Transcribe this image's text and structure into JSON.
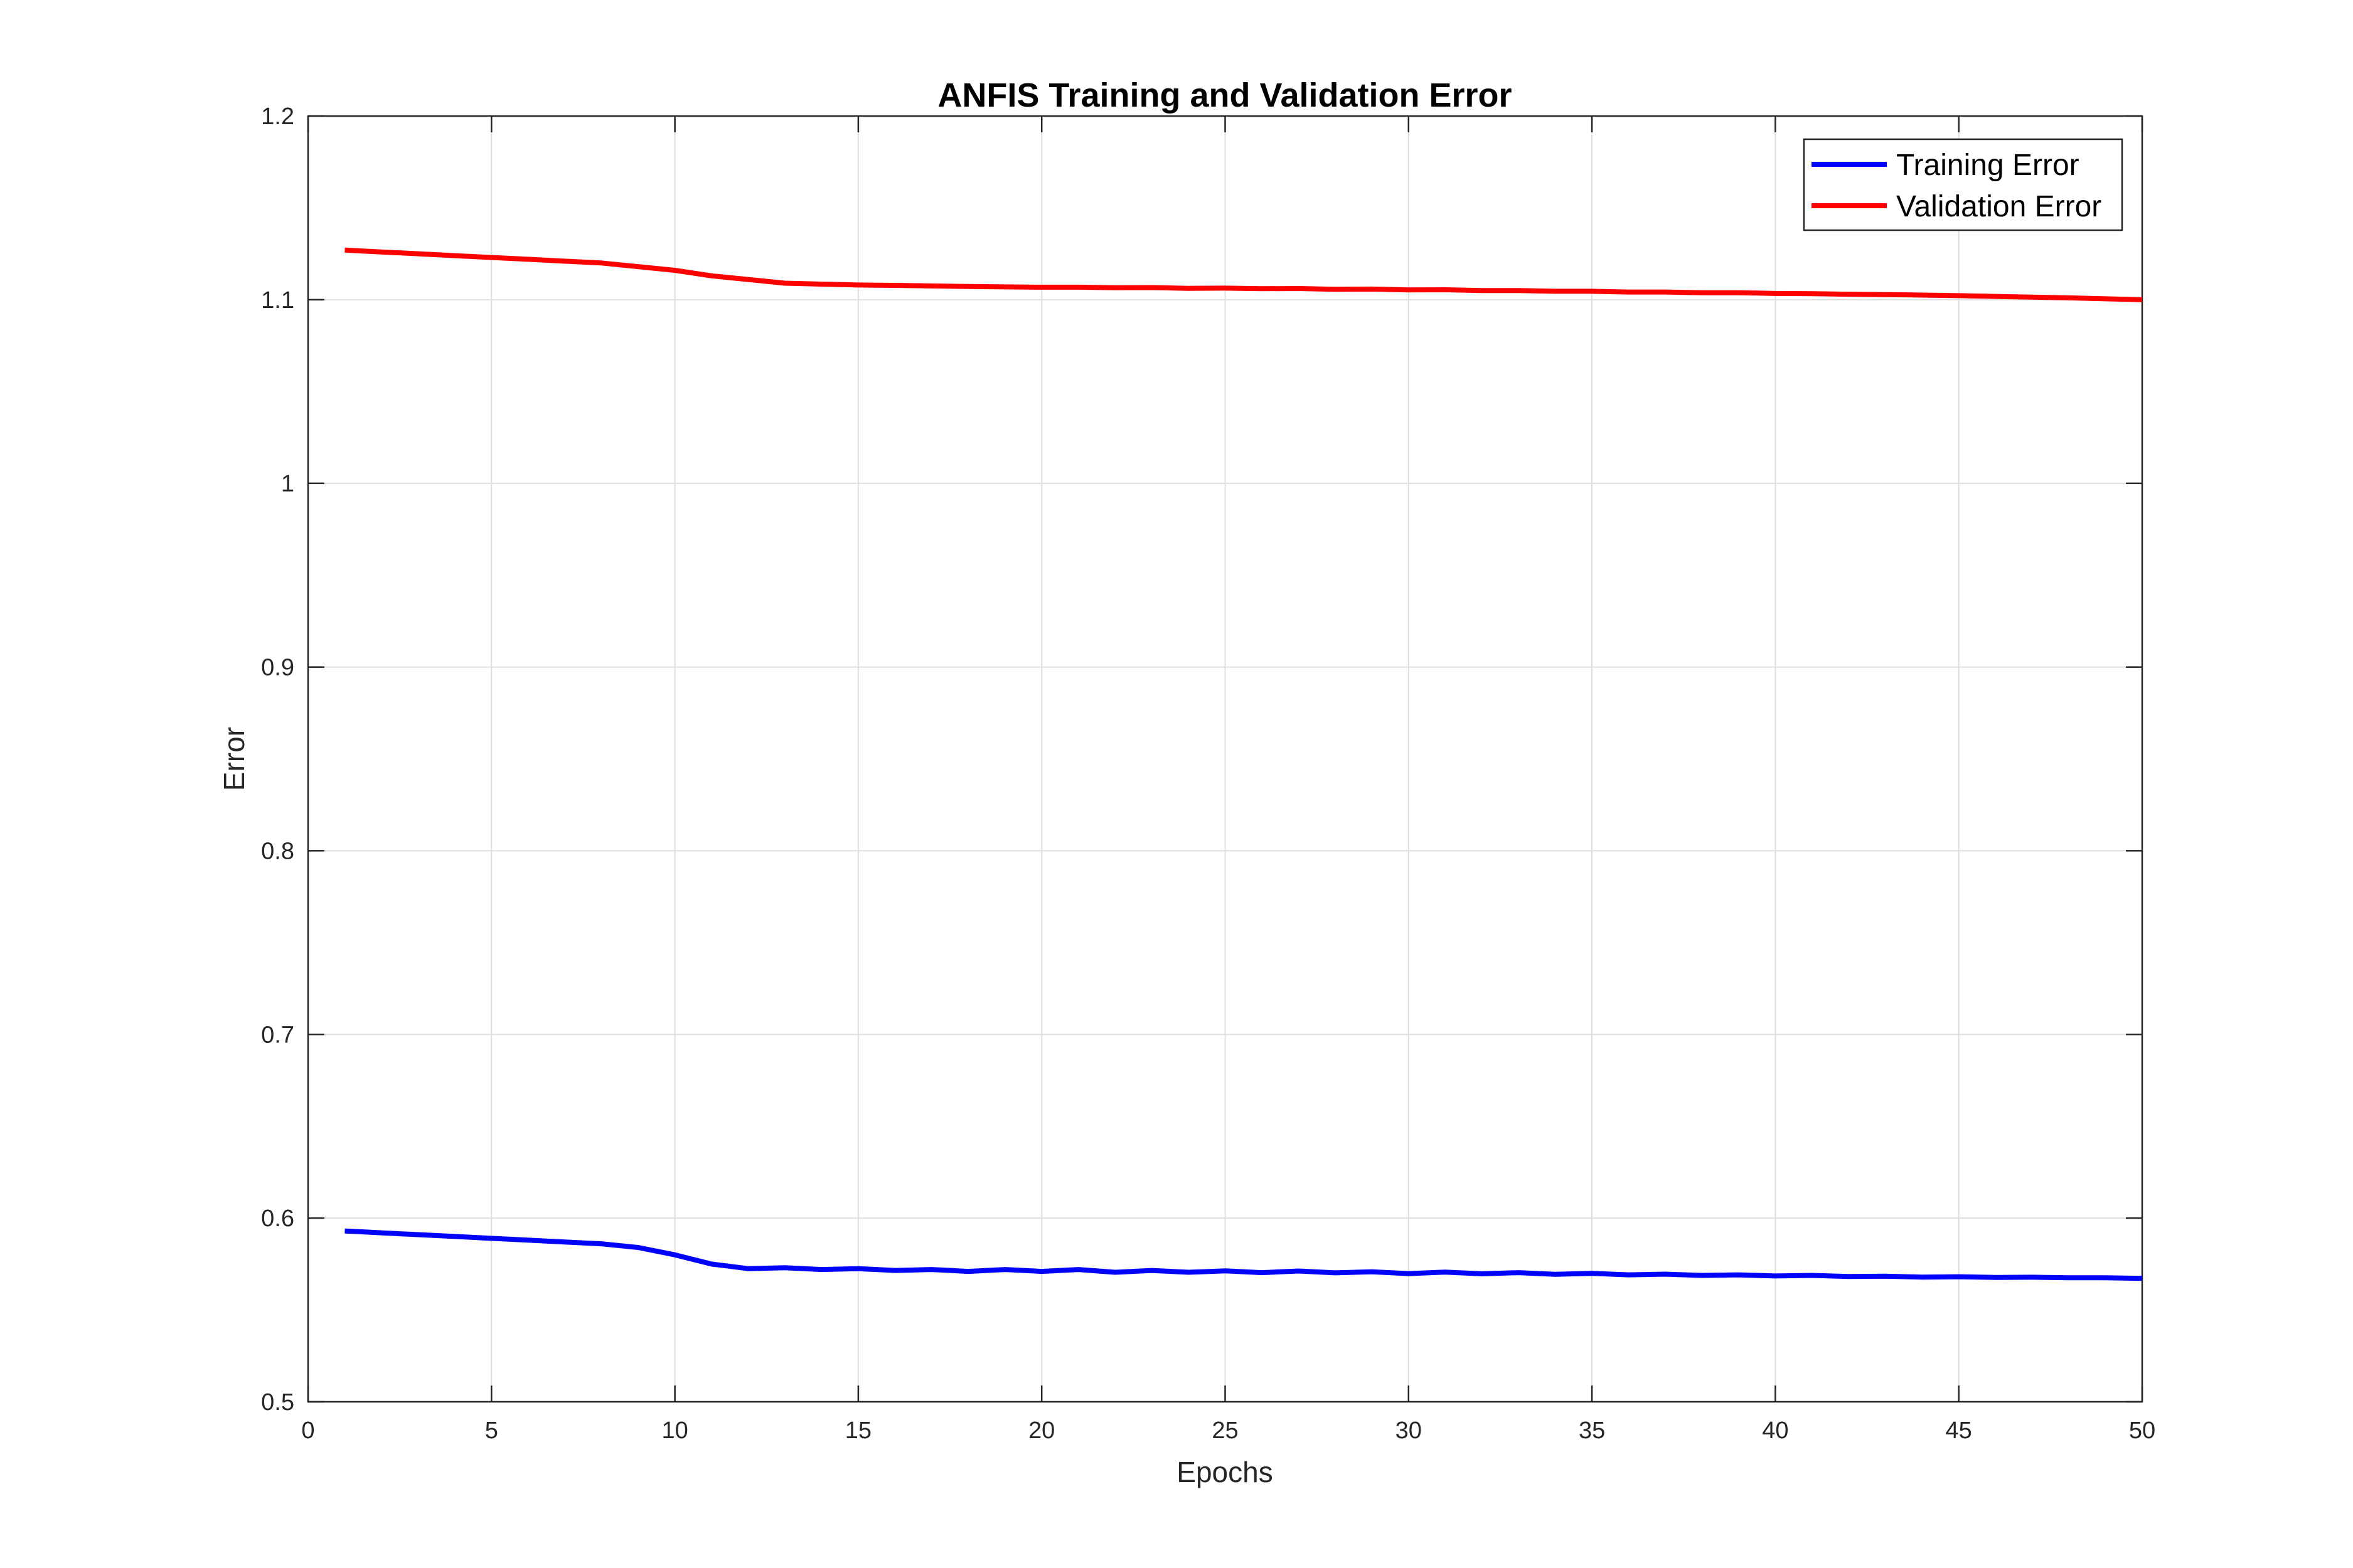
{
  "chart_data": {
    "type": "line",
    "title": "ANFIS Training and Validation Error",
    "xlabel": "Epochs",
    "ylabel": "Error",
    "xlim": [
      0,
      50
    ],
    "ylim": [
      0.5,
      1.2
    ],
    "xticks": [
      0,
      5,
      10,
      15,
      20,
      25,
      30,
      35,
      40,
      45,
      50
    ],
    "xtick_labels": [
      "0",
      "5",
      "10",
      "15",
      "20",
      "25",
      "30",
      "35",
      "40",
      "45",
      "50"
    ],
    "yticks": [
      0.5,
      0.6,
      0.7,
      0.8,
      0.9,
      1.0,
      1.1,
      1.2
    ],
    "ytick_labels": [
      "0.5",
      "0.6",
      "0.7",
      "0.8",
      "0.9",
      "1",
      "1.1",
      "1.2"
    ],
    "grid": true,
    "legend_position": "top-right",
    "x": [
      1,
      2,
      3,
      4,
      5,
      6,
      7,
      8,
      9,
      10,
      11,
      12,
      13,
      14,
      15,
      16,
      17,
      18,
      19,
      20,
      21,
      22,
      23,
      24,
      25,
      26,
      27,
      28,
      29,
      30,
      31,
      32,
      33,
      34,
      35,
      36,
      37,
      38,
      39,
      40,
      41,
      42,
      43,
      44,
      45,
      46,
      47,
      48,
      49,
      50
    ],
    "series": [
      {
        "name": "Training Error",
        "color": "#0000ff",
        "values": [
          0.593,
          0.592,
          0.591,
          0.59,
          0.589,
          0.588,
          0.587,
          0.586,
          0.584,
          0.58,
          0.575,
          0.5725,
          0.573,
          0.572,
          0.5725,
          0.5715,
          0.572,
          0.571,
          0.572,
          0.571,
          0.572,
          0.5705,
          0.5715,
          0.5705,
          0.5713,
          0.5703,
          0.5712,
          0.5702,
          0.5708,
          0.5698,
          0.5706,
          0.5697,
          0.5703,
          0.5694,
          0.5699,
          0.5691,
          0.5695,
          0.5688,
          0.5691,
          0.5685,
          0.5688,
          0.5682,
          0.5684,
          0.5679,
          0.5681,
          0.5677,
          0.5678,
          0.5675,
          0.5675,
          0.5672
        ]
      },
      {
        "name": "Validation Error",
        "color": "#ff0000",
        "values": [
          1.127,
          1.126,
          1.125,
          1.124,
          1.123,
          1.122,
          1.121,
          1.12,
          1.118,
          1.116,
          1.113,
          1.111,
          1.109,
          1.1085,
          1.108,
          1.1078,
          1.1075,
          1.1072,
          1.107,
          1.1068,
          1.1068,
          1.1065,
          1.1066,
          1.1062,
          1.1063,
          1.106,
          1.1061,
          1.1057,
          1.1058,
          1.1053,
          1.1054,
          1.105,
          1.105,
          1.1046,
          1.1046,
          1.1042,
          1.1042,
          1.1038,
          1.1038,
          1.1034,
          1.1033,
          1.103,
          1.1028,
          1.1025,
          1.1022,
          1.1018,
          1.1014,
          1.101,
          1.1005,
          1.1
        ]
      }
    ]
  }
}
